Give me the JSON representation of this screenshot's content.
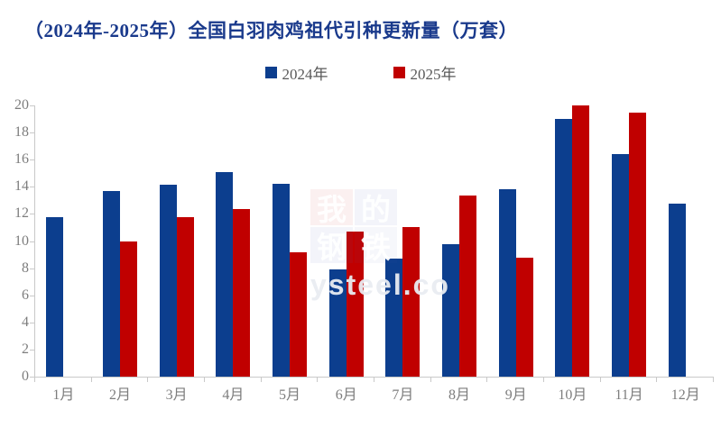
{
  "title": "（2024年-2025年）全国白羽肉鸡祖代引种更新量（万套）",
  "legend": {
    "items": [
      {
        "label": "2024年",
        "color": "#0c3e8e"
      },
      {
        "label": "2025年",
        "color": "#c00000"
      }
    ]
  },
  "watermark": {
    "blocks": [
      "我",
      "的",
      "钢",
      "铁"
    ],
    "text": "ysteel.co"
  },
  "colors": {
    "series_2024": "#0c3e8e",
    "series_2025": "#c00000",
    "title_text": "#1a3a8c",
    "axis_line": "#c9c9c9",
    "tick_label": "#7d7d7d",
    "legend_text": "#595959"
  },
  "chart_data": {
    "type": "bar",
    "title": "（2024年-2025年）全国白羽肉鸡祖代引种更新量（万套）",
    "categories": [
      "1月",
      "2月",
      "3月",
      "4月",
      "5月",
      "6月",
      "7月",
      "8月",
      "9月",
      "10月",
      "11月",
      "12月"
    ],
    "series": [
      {
        "name": "2024年",
        "color": "#0c3e8e",
        "values": [
          11.75,
          13.7,
          14.15,
          15.1,
          14.2,
          7.9,
          8.7,
          9.8,
          13.8,
          19.0,
          16.4,
          12.75
        ]
      },
      {
        "name": "2025年",
        "color": "#c00000",
        "values": [
          null,
          10.0,
          11.75,
          12.35,
          9.2,
          10.7,
          11.0,
          13.35,
          8.8,
          20.0,
          19.5,
          null
        ]
      }
    ],
    "xlabel": "",
    "ylabel": "",
    "ylim": [
      0,
      20
    ],
    "yticks": [
      0,
      2,
      4,
      6,
      8,
      10,
      12,
      14,
      16,
      18,
      20
    ],
    "grid": false,
    "legend_position": "top-center"
  }
}
